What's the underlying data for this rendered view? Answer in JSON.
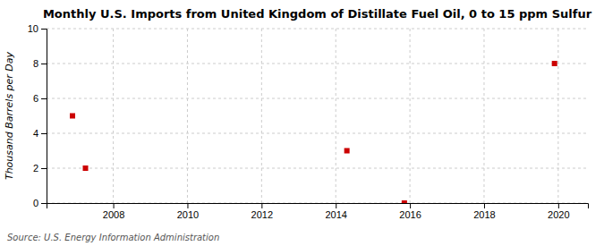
{
  "chart_data": {
    "type": "scatter",
    "title": "Monthly U.S. Imports from United Kingdom of Distillate Fuel Oil, 0 to 15 ppm Sulfur",
    "y_label": "Thousand Barrels per Day",
    "annotations": [
      "Source: U.S. Energy Information Administration"
    ],
    "x": [
      2006.9,
      2007.25,
      2014.3,
      2015.85,
      2019.9
    ],
    "values": [
      5,
      2,
      3,
      0,
      8
    ],
    "color": "#CC0000",
    "marker": "square",
    "xlim": [
      2006.2,
      2020.8
    ],
    "xticks": [
      2008,
      2010,
      2012,
      2014,
      2016,
      2018,
      2020
    ],
    "ylim": [
      0,
      10
    ],
    "yticks": [
      0,
      2,
      4,
      6,
      8,
      10
    ],
    "grid": true
  }
}
